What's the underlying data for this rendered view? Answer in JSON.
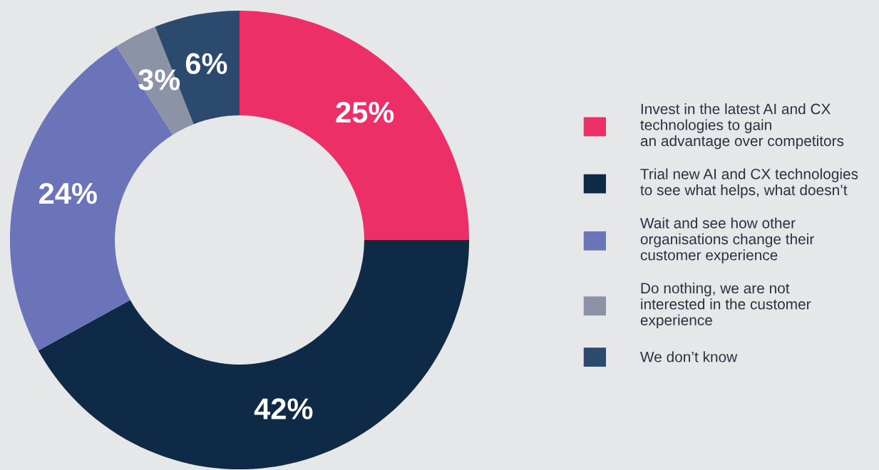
{
  "chart_data": {
    "type": "donut",
    "categories": [
      "Invest in the latest AI and CX\ntechnologies to gain\nan advantage over competitors",
      "Trial new AI and CX technologies\nto see what helps, what doesn’t",
      "Wait and see how other\norganisations change their\ncustomer experience",
      "Do nothing, we are not\ninterested in the customer\nexperience",
      "We don’t know"
    ],
    "values": [
      25,
      42,
      24,
      3,
      6
    ],
    "colors": [
      "#ec2f67",
      "#0f2a47",
      "#6b74b8",
      "#8c93a6",
      "#2c4a6e"
    ],
    "value_labels": [
      "25%",
      "42%",
      "24%",
      "3%",
      "6%"
    ],
    "legend": "right"
  }
}
